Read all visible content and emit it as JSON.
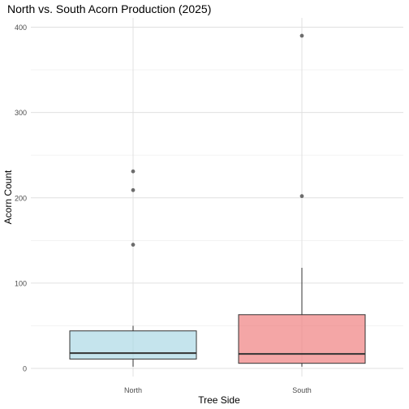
{
  "chart_data": {
    "type": "boxplot",
    "title": "North vs. South Acorn Production (2025)",
    "xlabel": "Tree Side",
    "ylabel": "Acorn Count",
    "ylim": [
      -5,
      410
    ],
    "y_ticks": [
      0,
      100,
      200,
      300,
      400
    ],
    "grid": true,
    "categories": [
      "North",
      "South"
    ],
    "boxes": [
      {
        "category": "North",
        "fill": "#add8e6",
        "min": 2,
        "q1": 11,
        "median": 18,
        "q3": 44,
        "max": 50,
        "outliers": [
          145,
          209,
          231
        ]
      },
      {
        "category": "South",
        "fill": "#f08080",
        "min": 2,
        "q1": 6,
        "median": 17,
        "q3": 63,
        "max": 118,
        "outliers": [
          202,
          390
        ]
      }
    ]
  }
}
